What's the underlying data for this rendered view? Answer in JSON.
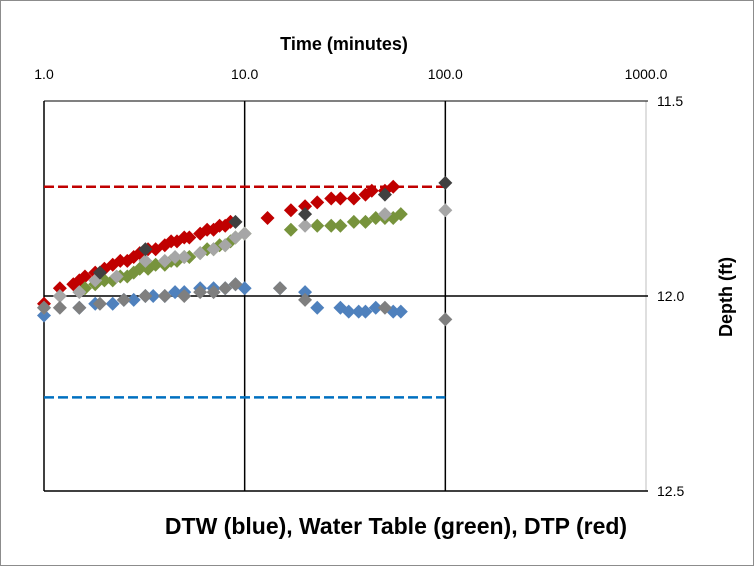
{
  "chart_data": {
    "type": "scatter",
    "title": "",
    "xlabel": "Time (minutes)",
    "ylabel": "Depth (ft)",
    "caption": "DTW (blue), Water Table (green), DTP (red)",
    "x_scale": "log",
    "xlim": [
      1.0,
      1000.0
    ],
    "ylim": [
      11.5,
      12.5
    ],
    "y_inverted": true,
    "x_ticks": [
      1.0,
      10.0,
      100.0,
      1000.0
    ],
    "x_tick_labels": [
      "1.0",
      "10.0",
      "100.0",
      "1000.0"
    ],
    "y_ticks": [
      11.5,
      12.0,
      12.5
    ],
    "y_tick_labels": [
      "11.5",
      "12.0",
      "12.5"
    ],
    "x_axis_position": "top",
    "y_axis_position": "right",
    "grid": true,
    "reference_lines": [
      {
        "y": 11.72,
        "x_range": [
          1.0,
          100.0
        ],
        "color": "#c00000",
        "style": "dashed"
      },
      {
        "y": 12.26,
        "x_range": [
          1.0,
          100.0
        ],
        "color": "#0070c0",
        "style": "dashed"
      }
    ],
    "series": [
      {
        "color": "#c00000",
        "x": [
          1.0,
          1.2,
          1.4,
          1.5,
          1.6,
          1.8,
          2.0,
          2.2,
          2.4,
          2.6,
          2.8,
          3.0,
          3.3,
          3.6,
          4.0,
          4.3,
          4.6,
          5.0,
          5.3,
          6.0,
          6.5,
          7.0,
          7.5,
          8.0,
          8.5,
          13.0,
          17.0,
          20.0,
          23.0,
          27.0,
          30.0,
          35.0,
          40.0,
          43.0,
          50.0,
          55.0
        ],
        "y": [
          12.02,
          11.98,
          11.97,
          11.96,
          11.95,
          11.94,
          11.93,
          11.92,
          11.91,
          11.91,
          11.9,
          11.89,
          11.88,
          11.88,
          11.87,
          11.86,
          11.86,
          11.85,
          11.85,
          11.84,
          11.83,
          11.83,
          11.82,
          11.82,
          11.81,
          11.8,
          11.78,
          11.77,
          11.76,
          11.75,
          11.75,
          11.75,
          11.74,
          11.73,
          11.73,
          11.72
        ]
      },
      {
        "color": "#77933c",
        "x": [
          1.6,
          1.8,
          2.0,
          2.2,
          2.4,
          2.6,
          2.8,
          3.0,
          3.3,
          3.6,
          4.0,
          4.3,
          4.6,
          5.0,
          5.3,
          6.0,
          6.5,
          7.0,
          7.5,
          8.0,
          8.5,
          9.0,
          10.0,
          17.0,
          23.0,
          27.0,
          30.0,
          35.0,
          40.0,
          45.0,
          50.0,
          55.0,
          60.0
        ],
        "y": [
          11.98,
          11.97,
          11.96,
          11.96,
          11.95,
          11.95,
          11.94,
          11.93,
          11.93,
          11.92,
          11.92,
          11.91,
          11.91,
          11.9,
          11.9,
          11.89,
          11.88,
          11.88,
          11.87,
          11.87,
          11.86,
          11.85,
          11.84,
          11.83,
          11.82,
          11.82,
          11.82,
          11.81,
          11.81,
          11.8,
          11.8,
          11.8,
          11.79
        ]
      },
      {
        "color": "#4f81bd",
        "x": [
          1.0,
          1.5,
          1.8,
          2.2,
          2.5,
          2.8,
          3.2,
          3.5,
          4.0,
          4.5,
          5.0,
          6.0,
          7.0,
          8.0,
          9.0,
          10.0,
          15.0,
          20.0,
          23.0,
          30.0,
          33.0,
          37.0,
          40.0,
          45.0,
          55.0,
          60.0
        ],
        "y": [
          12.05,
          12.03,
          12.02,
          12.02,
          12.01,
          12.01,
          12.0,
          12.0,
          12.0,
          11.99,
          11.99,
          11.98,
          11.98,
          11.98,
          11.97,
          11.98,
          11.98,
          11.99,
          12.03,
          12.03,
          12.04,
          12.04,
          12.04,
          12.03,
          12.04,
          12.04
        ]
      },
      {
        "color": "#a6a6a6",
        "x": [
          1.0,
          1.2,
          1.5,
          1.8,
          2.3,
          3.2,
          4.0,
          4.5,
          5.0,
          6.0,
          7.0,
          8.0,
          9.0,
          10.0,
          20.0,
          50.0,
          100.0
        ],
        "y": [
          12.03,
          12.0,
          11.99,
          11.96,
          11.95,
          11.91,
          11.91,
          11.9,
          11.9,
          11.89,
          11.88,
          11.87,
          11.85,
          11.84,
          11.82,
          11.79,
          11.78
        ]
      },
      {
        "color": "#7f7f7f",
        "x": [
          1.0,
          1.2,
          1.5,
          1.9,
          2.5,
          3.2,
          4.0,
          5.0,
          6.0,
          7.0,
          8.0,
          9.0,
          15.0,
          20.0,
          50.0,
          100.0
        ],
        "y": [
          12.03,
          12.03,
          12.03,
          12.02,
          12.01,
          12.0,
          12.0,
          12.0,
          11.99,
          11.99,
          11.98,
          11.97,
          11.98,
          12.01,
          12.03,
          12.06
        ]
      },
      {
        "color": "#404040",
        "x": [
          1.9,
          3.2,
          9.0,
          20.0,
          50.0,
          100.0
        ],
        "y": [
          11.94,
          11.88,
          11.81,
          11.79,
          11.74,
          11.71
        ]
      }
    ]
  }
}
